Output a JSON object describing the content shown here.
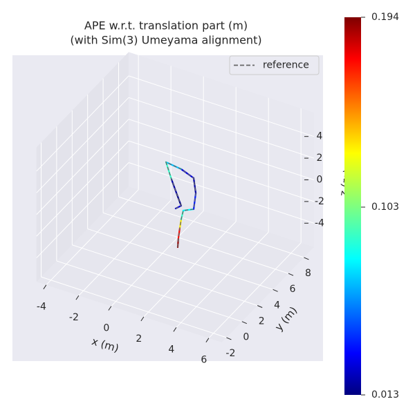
{
  "chart_data": {
    "type": "trajectory3d",
    "title": [
      "APE w.r.t. translation part (m)",
      "(with Sim(3) Umeyama alignment)"
    ],
    "xlabel": "x (m)",
    "ylabel": "y (m)",
    "zlabel": "z (m)",
    "xlim": [
      -4.6,
      6.8
    ],
    "ylim": [
      -2.6,
      9.3
    ],
    "zlim": [
      -6.2,
      6.2
    ],
    "xticks": [
      -4,
      -2,
      0,
      2,
      4,
      6
    ],
    "yticks": [
      -2,
      0,
      2,
      4,
      6,
      8
    ],
    "zticks": [
      -4,
      -2,
      0,
      2,
      4
    ],
    "grid": true,
    "legend": "upper right",
    "series": [
      {
        "name": "reference",
        "color": "#666666",
        "linestyle": "dashed",
        "x": [
          1.42,
          1.46,
          1.55,
          1.63,
          1.76,
          2.4,
          2.53,
          2.4,
          1.63,
          0.7,
          1.04,
          1.38,
          1.63,
          1.29
        ],
        "y": [
          3,
          3,
          3,
          3,
          3,
          3,
          3,
          3,
          3,
          3,
          3,
          3,
          3,
          3
        ],
        "z": [
          -4.2,
          -3.35,
          -2.35,
          -1.54,
          -0.65,
          -0.21,
          1.32,
          2.66,
          3.11,
          3.29,
          1.86,
          0.62,
          -0.27,
          -0.69
        ]
      }
    ],
    "estimate": {
      "x": [
        1.42,
        1.46,
        1.55,
        1.63,
        1.76,
        2.4,
        2.53,
        2.4,
        1.63,
        0.7,
        1.04,
        1.38,
        1.63,
        1.29
      ],
      "y": [
        3,
        3,
        3,
        3,
        3,
        3,
        3,
        3,
        3,
        3,
        3,
        3,
        3,
        3
      ],
      "z": [
        -4.2,
        -3.35,
        -2.35,
        -1.54,
        -0.65,
        -0.21,
        1.32,
        2.66,
        3.11,
        3.29,
        1.86,
        0.62,
        -0.27,
        -0.69
      ],
      "error": [
        0.19,
        0.17,
        0.13,
        0.09,
        0.08,
        0.04,
        0.02,
        0.03,
        0.07,
        0.09,
        0.02,
        0.015,
        0.03,
        0.06
      ]
    },
    "colorbar": {
      "colormap": "jet",
      "clim": [
        0.013,
        0.194
      ],
      "ticks": [
        0.013,
        0.103,
        0.194
      ]
    }
  }
}
